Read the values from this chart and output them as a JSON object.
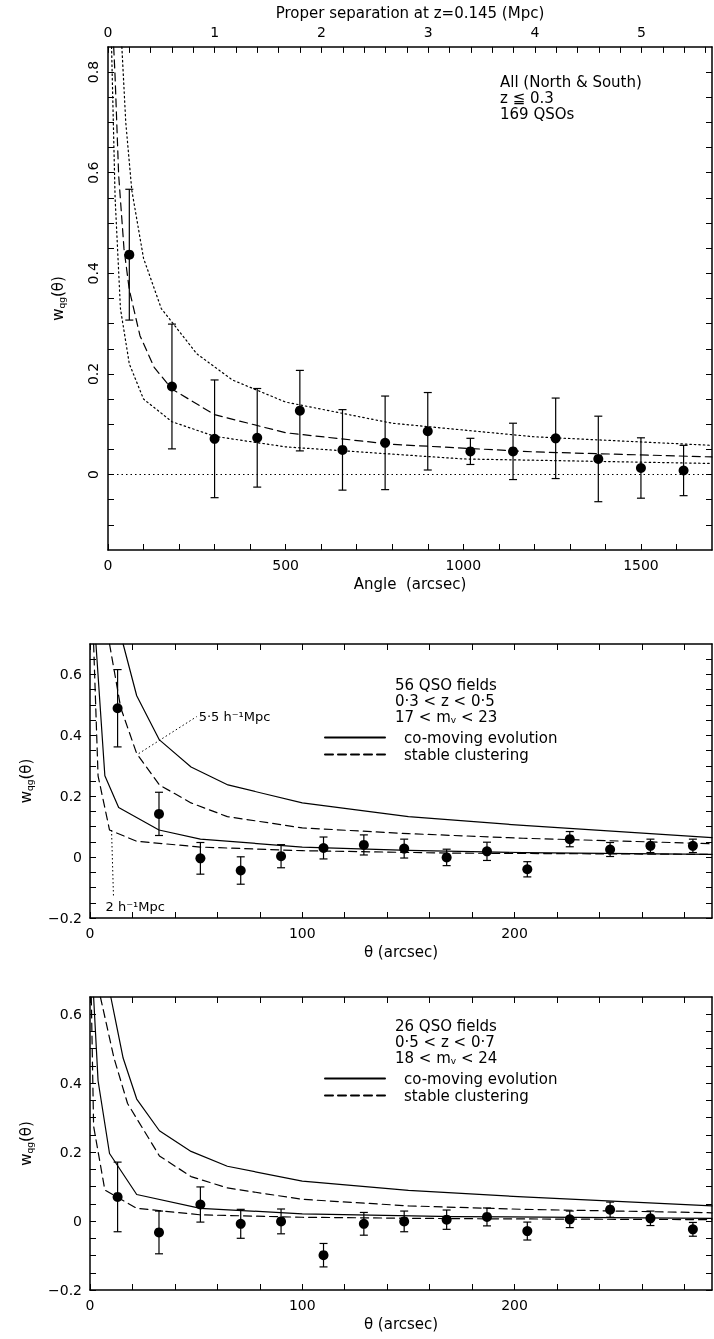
{
  "chart_data": [
    {
      "type": "scatter",
      "xlabel": "Angle  (arcsec)",
      "ylabel": "w$_{qg}$(θ)",
      "x2label": "Proper separation at z=0.145 (Mpc)",
      "annotations": [
        "All (North & South)",
        "z ≦ 0.3",
        "169 QSOs"
      ],
      "legend": false,
      "xlim": [
        0,
        1700
      ],
      "xticks": [
        0,
        {
          "value": 100,
          "label": null
        },
        {
          "value": 200,
          "label": null
        },
        {
          "value": 300,
          "label": null
        },
        {
          "value": 400,
          "label": null
        },
        500,
        {
          "value": 600,
          "label": null
        },
        {
          "value": 700,
          "label": null
        },
        {
          "value": 800,
          "label": null
        },
        {
          "value": 900,
          "label": null
        },
        1000,
        {
          "value": 1100,
          "label": null
        },
        {
          "value": 1200,
          "label": null
        },
        {
          "value": 1300,
          "label": null
        },
        {
          "value": 1400,
          "label": null
        },
        1500,
        {
          "value": 1600,
          "label": null
        }
      ],
      "x2lim": [
        0,
        5.66
      ],
      "x2ticks": [
        0,
        {
          "value": 0.2,
          "label": null
        },
        {
          "value": 0.4,
          "label": null
        },
        {
          "value": 0.6,
          "label": null
        },
        {
          "value": 0.8,
          "label": null
        },
        1,
        {
          "value": 1.2,
          "label": null
        },
        {
          "value": 1.4,
          "label": null
        },
        {
          "value": 1.6,
          "label": null
        },
        {
          "value": 1.8,
          "label": null
        },
        2,
        {
          "value": 2.2,
          "label": null
        },
        {
          "value": 2.4,
          "label": null
        },
        {
          "value": 2.6,
          "label": null
        },
        {
          "value": 2.8,
          "label": null
        },
        3,
        {
          "value": 3.2,
          "label": null
        },
        {
          "value": 3.4,
          "label": null
        },
        {
          "value": 3.6,
          "label": null
        },
        {
          "value": 3.8,
          "label": null
        },
        4,
        {
          "value": 4.2,
          "label": null
        },
        {
          "value": 4.4,
          "label": null
        },
        {
          "value": 4.6,
          "label": null
        },
        {
          "value": 4.8,
          "label": null
        },
        5,
        {
          "value": 5.2,
          "label": null
        },
        {
          "value": 5.4,
          "label": null
        },
        {
          "value": 5.6,
          "label": null
        }
      ],
      "ylim": [
        -0.15,
        0.85
      ],
      "yticks": [
        {
          "value": -0.1,
          "label": null
        },
        {
          "value": -0.05,
          "label": null
        },
        0,
        {
          "value": 0.05,
          "label": null
        },
        {
          "value": 0.1,
          "label": null
        },
        {
          "value": 0.15,
          "label": null
        },
        0.2,
        {
          "value": 0.25,
          "label": null
        },
        {
          "value": 0.3,
          "label": null
        },
        {
          "value": 0.35,
          "label": null
        },
        0.4,
        {
          "value": 0.45,
          "label": null
        },
        {
          "value": 0.5,
          "label": null
        },
        {
          "value": 0.55,
          "label": null
        },
        0.6,
        {
          "value": 0.65,
          "label": null
        },
        {
          "value": 0.7,
          "label": null
        },
        {
          "value": 0.75,
          "label": null
        },
        0.8
      ],
      "ref_lines": [
        {
          "axis": "y",
          "value": 0,
          "color": "#000000",
          "line_style": "dotted"
        }
      ],
      "series": [
        {
          "marker": "circle",
          "color": "#000000",
          "x": [
            60,
            180,
            300,
            420,
            540,
            660,
            780,
            900,
            1020,
            1140,
            1260,
            1380,
            1500,
            1620
          ],
          "values": [
            0.437,
            0.175,
            0.071,
            0.073,
            0.127,
            0.049,
            0.063,
            0.086,
            0.046,
            0.046,
            0.072,
            0.031,
            0.013,
            0.008
          ],
          "errors": [
            0.13,
            0.124,
            0.117,
            0.098,
            0.08,
            0.08,
            0.093,
            0.077,
            0.026,
            0.056,
            0.08,
            0.085,
            0.06,
            0.05
          ]
        },
        {
          "type": "line",
          "color": "#000000",
          "line_style": "dashed",
          "x": [
            16,
            20,
            30,
            45,
            60,
            90,
            130,
            180,
            300,
            500,
            800,
            1200,
            1700
          ],
          "values": [
            0.85,
            0.79,
            0.595,
            0.449,
            0.367,
            0.276,
            0.213,
            0.17,
            0.119,
            0.083,
            0.06,
            0.045,
            0.035
          ]
        },
        {
          "type": "line",
          "color": "#000000",
          "line_style": "dotted",
          "x": [
            39,
            50,
            67,
            100,
            150,
            250,
            350,
            500,
            800,
            1200,
            1700
          ],
          "values": [
            0.85,
            0.7,
            0.565,
            0.43,
            0.33,
            0.24,
            0.188,
            0.144,
            0.102,
            0.075,
            0.058
          ]
        },
        {
          "type": "line",
          "color": "#000000",
          "line_style": "dotted",
          "x": [
            10,
            20,
            35,
            60,
            100,
            180,
            300,
            500,
            1000,
            1700
          ],
          "values": [
            0.85,
            0.55,
            0.33,
            0.22,
            0.15,
            0.105,
            0.076,
            0.055,
            0.031,
            0.022
          ]
        }
      ]
    },
    {
      "type": "scatter",
      "xlabel": "θ (arcsec)",
      "ylabel": "w$_{qg}$(θ)",
      "annotations": [
        "56 QSO fields",
        "0·3 < z < 0·5",
        "17 < m$_{v}$ < 23",
        {
          "text": "5·5 h⁻¹Mpc",
          "x": 22,
          "y": 0.34
        },
        {
          "text": "2 h⁻¹Mpc",
          "x": 9.2,
          "y": 0.089
        }
      ],
      "legend": "top right",
      "xlim": [
        0,
        293
      ],
      "xticks": [
        0,
        {
          "value": 20,
          "label": null
        },
        {
          "value": 40,
          "label": null
        },
        {
          "value": 60,
          "label": null
        },
        {
          "value": 80,
          "label": null
        },
        100,
        {
          "value": 120,
          "label": null
        },
        {
          "value": 140,
          "label": null
        },
        {
          "value": 160,
          "label": null
        },
        {
          "value": 180,
          "label": null
        },
        200,
        {
          "value": 220,
          "label": null
        },
        {
          "value": 240,
          "label": null
        },
        {
          "value": 260,
          "label": null
        },
        {
          "value": 280,
          "label": null
        }
      ],
      "ylim": [
        -0.2,
        0.7
      ],
      "yticks": [
        {
          "value": -0.2,
          "label": "−0.2"
        },
        {
          "value": -0.15,
          "label": null
        },
        {
          "value": -0.1,
          "label": null
        },
        {
          "value": -0.05,
          "label": null
        },
        0,
        {
          "value": 0.05,
          "label": null
        },
        {
          "value": 0.1,
          "label": null
        },
        {
          "value": 0.15,
          "label": null
        },
        0.2,
        {
          "value": 0.25,
          "label": null
        },
        {
          "value": 0.3,
          "label": null
        },
        {
          "value": 0.35,
          "label": null
        },
        0.4,
        {
          "value": 0.45,
          "label": null
        },
        {
          "value": 0.5,
          "label": null
        },
        {
          "value": 0.55,
          "label": null
        },
        0.6,
        {
          "value": 0.65,
          "label": null
        }
      ],
      "series": [
        {
          "marker": "circle",
          "color": "#000000",
          "x": [
            13,
            32.5,
            52,
            71,
            90,
            110,
            129,
            148,
            168,
            187,
            206,
            226,
            245,
            264,
            284
          ],
          "values": [
            0.489,
            0.142,
            -0.004,
            -0.044,
            0.003,
            0.03,
            0.04,
            0.028,
            -0.001,
            0.019,
            -0.04,
            0.059,
            0.025,
            0.037,
            0.037
          ],
          "errors": [
            0.127,
            0.071,
            0.052,
            0.045,
            0.038,
            0.036,
            0.033,
            0.031,
            0.027,
            0.03,
            0.025,
            0.025,
            0.023,
            0.022,
            0.022
          ]
        },
        {
          "type": "line",
          "name": "co-moving evolution",
          "color": "#000000",
          "line_style": "solid",
          "x": [
            15.6,
            22,
            32.7,
            47.6,
            65,
            100,
            150,
            204,
            293
          ],
          "values": [
            0.7,
            0.53,
            0.385,
            0.296,
            0.237,
            0.178,
            0.133,
            0.104,
            0.064
          ]
        },
        {
          "type": "line",
          "name": "stable clustering",
          "color": "#000000",
          "line_style": "dashed",
          "x": [
            9.2,
            14.5,
            22,
            32.7,
            47.6,
            64.7,
            100,
            150,
            204,
            293
          ],
          "values": [
            0.7,
            0.49,
            0.34,
            0.237,
            0.178,
            0.133,
            0.096,
            0.077,
            0.062,
            0.044
          ]
        },
        {
          "type": "line",
          "color": "#000000",
          "line_style": "solid",
          "x": [
            2.8,
            7,
            13.5,
            32.5,
            52,
            100,
            150,
            204,
            293
          ],
          "values": [
            0.7,
            0.267,
            0.163,
            0.089,
            0.059,
            0.033,
            0.022,
            0.015,
            0.009
          ]
        },
        {
          "type": "line",
          "color": "#000000",
          "line_style": "dashed",
          "x": [
            1.7,
            3.8,
            9.2,
            22,
            52,
            100,
            171,
            293
          ],
          "values": [
            0.7,
            0.267,
            0.089,
            0.052,
            0.033,
            0.021,
            0.013,
            0.009
          ]
        }
      ]
    },
    {
      "type": "scatter",
      "xlabel": "θ (arcsec)",
      "ylabel": "w$_{qg}$(θ)",
      "annotations": [
        "26 QSO fields",
        "0·5 < z < 0·7",
        "18 < m$_{v}$ < 24"
      ],
      "legend": "top right",
      "xlim": [
        0,
        293
      ],
      "xticks": [
        0,
        {
          "value": 20,
          "label": null
        },
        {
          "value": 40,
          "label": null
        },
        {
          "value": 60,
          "label": null
        },
        {
          "value": 80,
          "label": null
        },
        100,
        {
          "value": 120,
          "label": null
        },
        {
          "value": 140,
          "label": null
        },
        {
          "value": 160,
          "label": null
        },
        {
          "value": 180,
          "label": null
        },
        200,
        {
          "value": 220,
          "label": null
        },
        {
          "value": 240,
          "label": null
        },
        {
          "value": 260,
          "label": null
        },
        {
          "value": 280,
          "label": null
        }
      ],
      "ylim": [
        -0.2,
        0.65
      ],
      "yticks": [
        {
          "value": -0.2,
          "label": "−0.2"
        },
        {
          "value": -0.15,
          "label": null
        },
        {
          "value": -0.1,
          "label": null
        },
        {
          "value": -0.05,
          "label": null
        },
        0,
        {
          "value": 0.05,
          "label": null
        },
        {
          "value": 0.1,
          "label": null
        },
        {
          "value": 0.15,
          "label": null
        },
        0.2,
        {
          "value": 0.25,
          "label": null
        },
        {
          "value": 0.3,
          "label": null
        },
        {
          "value": 0.35,
          "label": null
        },
        0.4,
        {
          "value": 0.45,
          "label": null
        },
        {
          "value": 0.5,
          "label": null
        },
        {
          "value": 0.55,
          "label": null
        },
        0.6
      ],
      "series": [
        {
          "marker": "circle",
          "color": "#000000",
          "x": [
            13,
            32.5,
            52,
            71,
            90,
            110,
            129,
            148,
            168,
            187,
            206,
            226,
            245,
            264,
            284
          ],
          "values": [
            0.07,
            -0.033,
            0.048,
            -0.008,
            -0.001,
            -0.099,
            -0.008,
            -0.001,
            0.004,
            0.012,
            -0.029,
            0.005,
            0.033,
            0.008,
            -0.024
          ],
          "errors": [
            0.101,
            0.062,
            0.051,
            0.042,
            0.036,
            0.034,
            0.033,
            0.03,
            0.028,
            0.026,
            0.026,
            0.024,
            0.022,
            0.021,
            0.02
          ]
        },
        {
          "type": "line",
          "name": "co-moving evolution",
          "color": "#000000",
          "line_style": "solid",
          "x": [
            9.8,
            15.6,
            22,
            32.7,
            47.6,
            64.7,
            100,
            150,
            204,
            293
          ],
          "values": [
            0.65,
            0.473,
            0.354,
            0.262,
            0.202,
            0.159,
            0.116,
            0.089,
            0.07,
            0.044
          ]
        },
        {
          "type": "line",
          "name": "stable clustering",
          "color": "#000000",
          "line_style": "dashed",
          "x": [
            4.9,
            11.3,
            17.7,
            32.7,
            47.6,
            64.7,
            100,
            150,
            204,
            293
          ],
          "values": [
            0.65,
            0.473,
            0.341,
            0.189,
            0.129,
            0.096,
            0.063,
            0.044,
            0.034,
            0.024
          ]
        },
        {
          "type": "line",
          "color": "#000000",
          "line_style": "solid",
          "x": [
            1.7,
            3.8,
            9.2,
            22,
            52,
            100,
            171,
            293
          ],
          "values": [
            0.65,
            0.407,
            0.196,
            0.077,
            0.037,
            0.021,
            0.013,
            0.008
          ]
        },
        {
          "type": "line",
          "color": "#000000",
          "line_style": "dashed",
          "x": [
            0.6,
            1.7,
            7,
            22,
            52,
            100,
            171,
            293
          ],
          "values": [
            0.65,
            0.275,
            0.09,
            0.037,
            0.018,
            0.011,
            0.007,
            0.004
          ]
        }
      ]
    }
  ]
}
